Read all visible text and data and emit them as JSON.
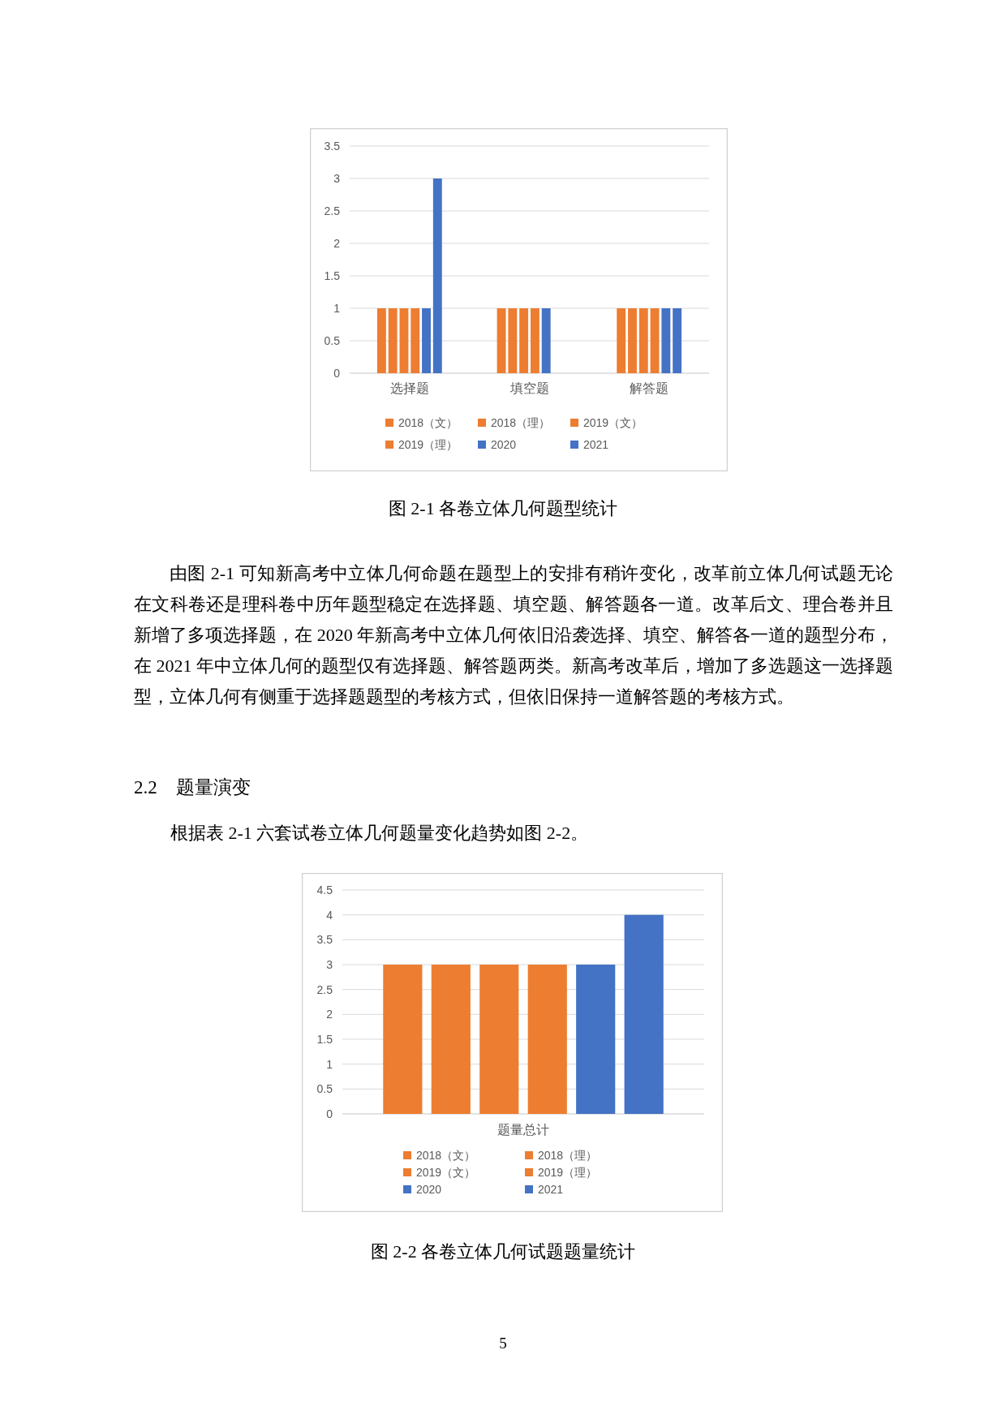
{
  "chart_data": [
    {
      "type": "bar",
      "categories": [
        "选择题",
        "填空题",
        "解答题"
      ],
      "series": [
        {
          "name": "2018（文）",
          "color": "#ed7d31",
          "values": [
            1,
            1,
            1
          ]
        },
        {
          "name": "2018（理）",
          "color": "#ed7d31",
          "values": [
            1,
            1,
            1
          ]
        },
        {
          "name": "2019（文）",
          "color": "#ed7d31",
          "values": [
            1,
            1,
            1
          ]
        },
        {
          "name": "2019（理）",
          "color": "#ed7d31",
          "values": [
            1,
            1,
            1
          ]
        },
        {
          "name": "2020",
          "color": "#4472c4",
          "values": [
            1,
            1,
            1
          ]
        },
        {
          "name": "2021",
          "color": "#4472c4",
          "values": [
            3,
            0,
            1
          ]
        }
      ],
      "ylim": [
        0,
        3.5
      ],
      "yticks": [
        0,
        0.5,
        1,
        1.5,
        2,
        2.5,
        3,
        3.5
      ],
      "grid": "y",
      "legend": "bottom",
      "annotations": [
        "图 2-1 各卷立体几何题型统计",
        "由图 2-1 可知新高考中立体几何命题在题型上的安排有稍许变化，改革前立体几何试题无论在文科卷还是理科卷中历年题型稳定在选择题、填空题、解答题各一道。改革后文、理合卷并且新增了多项选择题，在 2020 年新高考中立体几何依旧沿袭选择、填空、解答各一道的题型分布，在 2021 年中立体几何的题型仅有选择题、解答题两类。新高考改革后，增加了多选题这一选择题型，立体几何有侧重于选择题题型的考核方式，但依旧保持一道解答题的考核方式。"
      ]
    },
    {
      "type": "bar",
      "categories": [
        "题量总计"
      ],
      "series": [
        {
          "name": "2018（文）",
          "color": "#ed7d31",
          "values": [
            3
          ]
        },
        {
          "name": "2018（理）",
          "color": "#ed7d31",
          "values": [
            3
          ]
        },
        {
          "name": "2019（文）",
          "color": "#ed7d31",
          "values": [
            3
          ]
        },
        {
          "name": "2019（理）",
          "color": "#ed7d31",
          "values": [
            3
          ]
        },
        {
          "name": "2020",
          "color": "#4472c4",
          "values": [
            3
          ]
        },
        {
          "name": "2021",
          "color": "#4472c4",
          "values": [
            4
          ]
        }
      ],
      "ylim": [
        0,
        4.5
      ],
      "yticks": [
        0,
        0.5,
        1,
        1.5,
        2,
        2.5,
        3,
        3.5,
        4,
        4.5
      ],
      "grid": "y",
      "legend": "bottom",
      "annotations": [
        "2.2　题量演变",
        "根据表 2-1 六套试卷立体几何题量变化趋势如图 2-2。",
        "图 2-2 各卷立体几何试题题量统计",
        "5"
      ]
    }
  ]
}
